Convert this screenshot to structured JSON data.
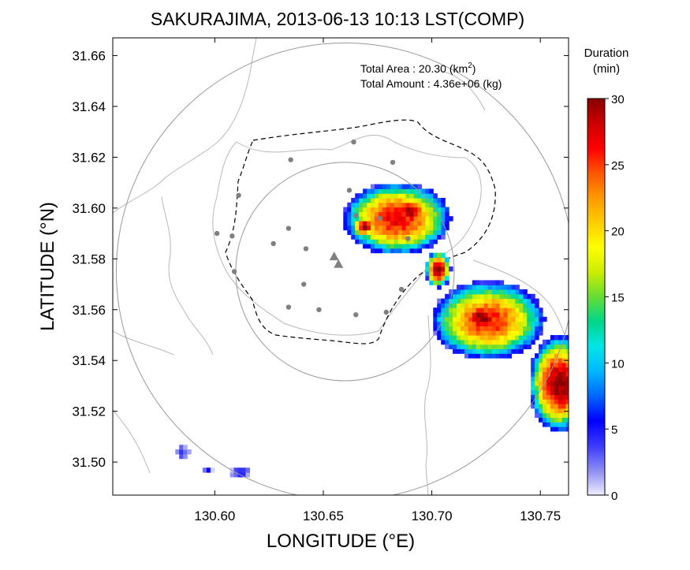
{
  "chart_data": {
    "type": "heatmap",
    "title": "SAKURAJIMA, 2013-06-13 10:13 LST(COMP)",
    "xlabel": "LONGITUDE (°E)",
    "ylabel": "LATITUDE (°N)",
    "xlim": [
      130.553,
      130.763
    ],
    "ylim": [
      31.487,
      31.667
    ],
    "xticks": [
      130.6,
      130.65,
      130.7,
      130.75
    ],
    "xtick_labels": [
      "130.60",
      "130.65",
      "130.70",
      "130.75"
    ],
    "yticks": [
      31.5,
      31.52,
      31.54,
      31.56,
      31.58,
      31.6,
      31.62,
      31.64,
      31.66
    ],
    "ytick_labels": [
      "31.50",
      "31.52",
      "31.54",
      "31.56",
      "31.58",
      "31.60",
      "31.62",
      "31.64",
      "31.66"
    ],
    "annotations": {
      "area_label": "Total Area   : 20.30 (km",
      "area_sup": "2",
      "area_close": ")",
      "amount_label": "Total Amount : 4.36e+06 (kg)"
    },
    "colorbar": {
      "title_line1": "Duration",
      "title_line2": "(min)",
      "min": 0,
      "max": 30,
      "ticks": [
        0,
        5,
        10,
        15,
        20,
        25,
        30
      ],
      "tick_labels": [
        "0",
        "5",
        "10",
        "15",
        "20",
        "25",
        "30"
      ],
      "colors": [
        "#eeeeff",
        "#8c8cf2",
        "#3a3aff",
        "#0000ff",
        "#0066ff",
        "#00b8ff",
        "#00e6e6",
        "#00d68a",
        "#66dd33",
        "#ccee00",
        "#ffff00",
        "#ffcc00",
        "#ff9900",
        "#ff5500",
        "#ff0000",
        "#cc0000",
        "#880000"
      ]
    },
    "range_rings": [
      {
        "center": [
          130.66,
          31.575
        ],
        "radius_deg_lat": 0.09,
        "color": "#999999"
      },
      {
        "center": [
          130.66,
          31.575
        ],
        "radius_deg_lat": 0.043,
        "color": "#999999"
      }
    ],
    "vent_markers": [
      [
        130.655,
        31.581
      ],
      [
        130.657,
        31.578
      ]
    ],
    "stations": [
      [
        130.664,
        31.626
      ],
      [
        130.635,
        31.619
      ],
      [
        130.611,
        31.605
      ],
      [
        130.608,
        31.589
      ],
      [
        130.601,
        31.59
      ],
      [
        130.627,
        31.586
      ],
      [
        130.634,
        31.592
      ],
      [
        130.642,
        31.584
      ],
      [
        130.662,
        31.607
      ],
      [
        130.665,
        31.597
      ],
      [
        130.676,
        31.596
      ],
      [
        130.682,
        31.618
      ],
      [
        130.689,
        31.588
      ],
      [
        130.686,
        31.568
      ],
      [
        130.641,
        31.57
      ],
      [
        130.634,
        31.561
      ],
      [
        130.648,
        31.56
      ],
      [
        130.665,
        31.558
      ],
      [
        130.679,
        31.559
      ],
      [
        130.609,
        31.575
      ]
    ],
    "ash_clusters": [
      {
        "name": "north",
        "center": [
          130.683,
          31.595
        ],
        "radius_xy": [
          0.021,
          0.012
        ],
        "peak_min": 27
      },
      {
        "name": "north-core",
        "center": [
          130.689,
          31.598
        ],
        "radius_xy": [
          0.008,
          0.005
        ],
        "peak_min": 30
      },
      {
        "name": "north-west-core",
        "center": [
          130.668,
          31.592
        ],
        "radius_xy": [
          0.005,
          0.004
        ],
        "peak_min": 29
      },
      {
        "name": "plume-east",
        "center": [
          130.725,
          31.555
        ],
        "radius_xy": [
          0.022,
          0.013
        ],
        "peak_min": 26
      },
      {
        "name": "plume-neck",
        "center": [
          130.702,
          31.575
        ],
        "radius_xy": [
          0.005,
          0.006
        ],
        "peak_min": 30
      },
      {
        "name": "plume-south",
        "center": [
          130.758,
          31.53
        ],
        "radius_xy": [
          0.012,
          0.016
        ],
        "peak_min": 30
      },
      {
        "name": "plume-core",
        "center": [
          130.722,
          31.556
        ],
        "radius_xy": [
          0.01,
          0.006
        ],
        "peak_min": 30
      },
      {
        "name": "patch-sw-1",
        "center": [
          130.584,
          31.503
        ],
        "radius_xy": [
          0.003,
          0.002
        ],
        "peak_min": 4
      },
      {
        "name": "patch-sw-2",
        "center": [
          130.611,
          31.495
        ],
        "radius_xy": [
          0.004,
          0.002
        ],
        "peak_min": 4
      },
      {
        "name": "patch-sw-3",
        "center": [
          130.596,
          31.496
        ],
        "radius_xy": [
          0.002,
          0.0015
        ],
        "peak_min": 4
      }
    ]
  }
}
